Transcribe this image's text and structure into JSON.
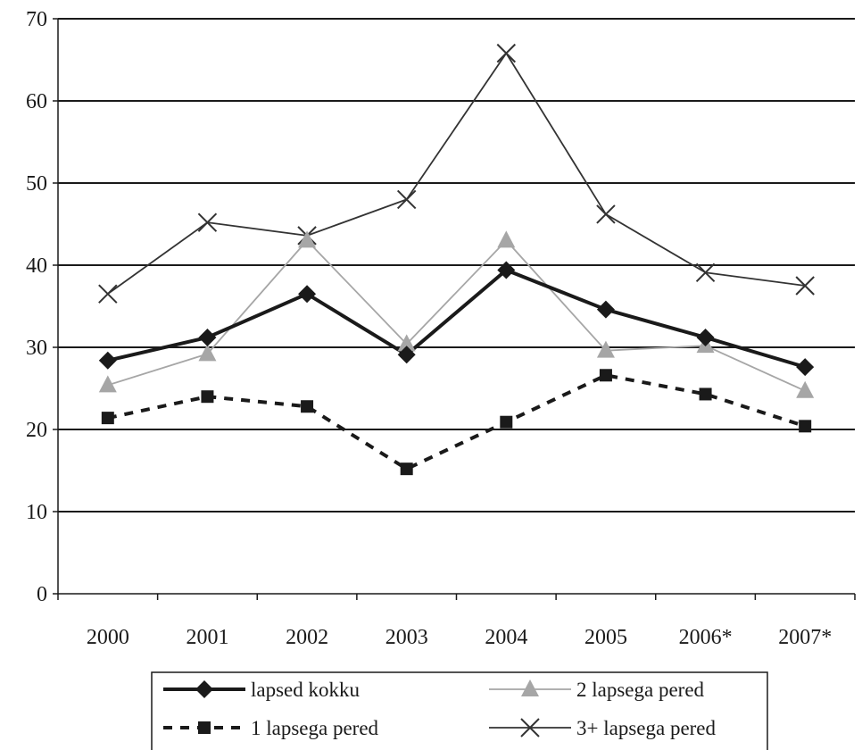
{
  "chart_data": {
    "type": "line",
    "categories": [
      "2000",
      "2001",
      "2002",
      "2003",
      "2004",
      "2005",
      "2006*",
      "2007*"
    ],
    "ylim": [
      0,
      70
    ],
    "yticks": [
      0,
      10,
      20,
      30,
      40,
      50,
      60,
      70
    ],
    "grid": true,
    "legend_position": "bottom",
    "series": [
      {
        "name": "lapsed kokku",
        "marker": "diamond",
        "line": "thick-solid",
        "color": "#1a1a1a",
        "values": [
          28.4,
          31.2,
          36.5,
          29.1,
          39.4,
          34.6,
          31.2,
          27.6
        ]
      },
      {
        "name": "2 lapsega pered",
        "marker": "triangle",
        "line": "thin-solid",
        "color": "#a6a6a6",
        "values": [
          25.4,
          29.2,
          43.0,
          30.4,
          43.0,
          29.6,
          30.2,
          24.7
        ]
      },
      {
        "name": "1 lapsega pered",
        "marker": "square",
        "line": "dashed",
        "color": "#1a1a1a",
        "values": [
          21.4,
          24.0,
          22.8,
          15.2,
          20.9,
          26.6,
          24.3,
          20.4
        ]
      },
      {
        "name": "3+ lapsega pered",
        "marker": "x",
        "line": "thin-solid",
        "color": "#333333",
        "values": [
          36.5,
          45.2,
          43.6,
          48.0,
          65.8,
          46.2,
          39.1,
          37.5
        ]
      }
    ]
  }
}
